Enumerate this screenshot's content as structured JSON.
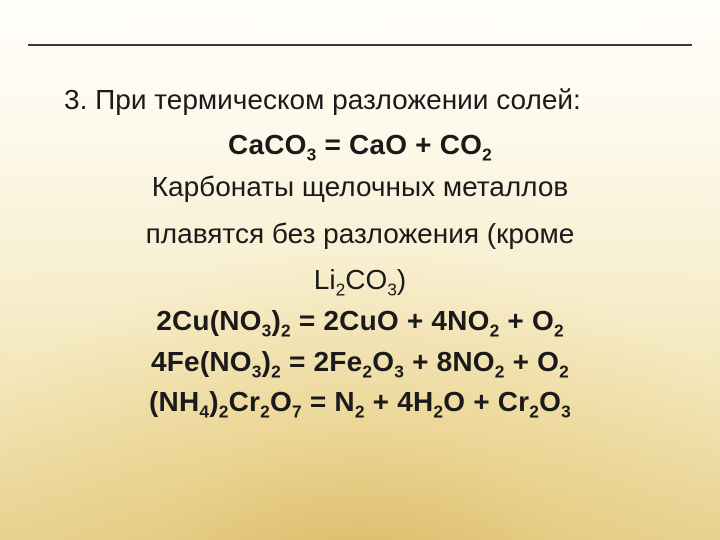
{
  "slide": {
    "background_top": "#fffef9",
    "background_bottom": "#e6d08e",
    "rule_color": "#3a3a3a",
    "text_color": "#1a1a1a",
    "font_size_pt": 21,
    "heading": {
      "number": "3.",
      "text": "При термическом разложении солей:"
    },
    "equation1": {
      "lhs": "CaCO",
      "lhs_sub": "3",
      "eq": " = ",
      "r1": "CaO",
      "plus1": " + ",
      "r2": "CO",
      "r2_sub": "2"
    },
    "note_line1": "Карбонаты щелочных металлов",
    "note_line2": "плавятся без разложения (кроме",
    "note_line3_a": "Li",
    "note_line3_sub1": "2",
    "note_line3_b": "CO",
    "note_line3_sub2": "3",
    "note_line3_c": ")",
    "equation2": {
      "c1": "2Cu(NO",
      "s1": "3",
      "c2": ")",
      "s2": "2",
      "eq": " = ",
      "c3": "2CuO",
      "plus1": " + ",
      "c4": "4NO",
      "s4": "2",
      "plus2": " + ",
      "c5": "O",
      "s5": "2"
    },
    "equation3": {
      "c1": "4Fe(NO",
      "s1": "3",
      "c2": ")",
      "s2": "2",
      "eq": " = ",
      "c3": "2Fe",
      "s3": "2",
      "c4": "O",
      "s4": "3",
      "plus1": " + ",
      "c5": "8NO",
      "s5": "2",
      "plus2": " + ",
      "c6": "O",
      "s6": "2"
    },
    "equation4": {
      "c1": "(NH",
      "s1": "4",
      "c2": ")",
      "s2": "2",
      "c3": "Cr",
      "s3": "2",
      "c4": "O",
      "s4": "7",
      "eq": "  = ",
      "c5": "N",
      "s5": "2",
      "plus1": " + ",
      "c6": "4H",
      "s6": "2",
      "c7": "O",
      "plus2": " + ",
      "c8": "Cr",
      "s8": "2",
      "c9": "O",
      "s9": "3"
    }
  }
}
